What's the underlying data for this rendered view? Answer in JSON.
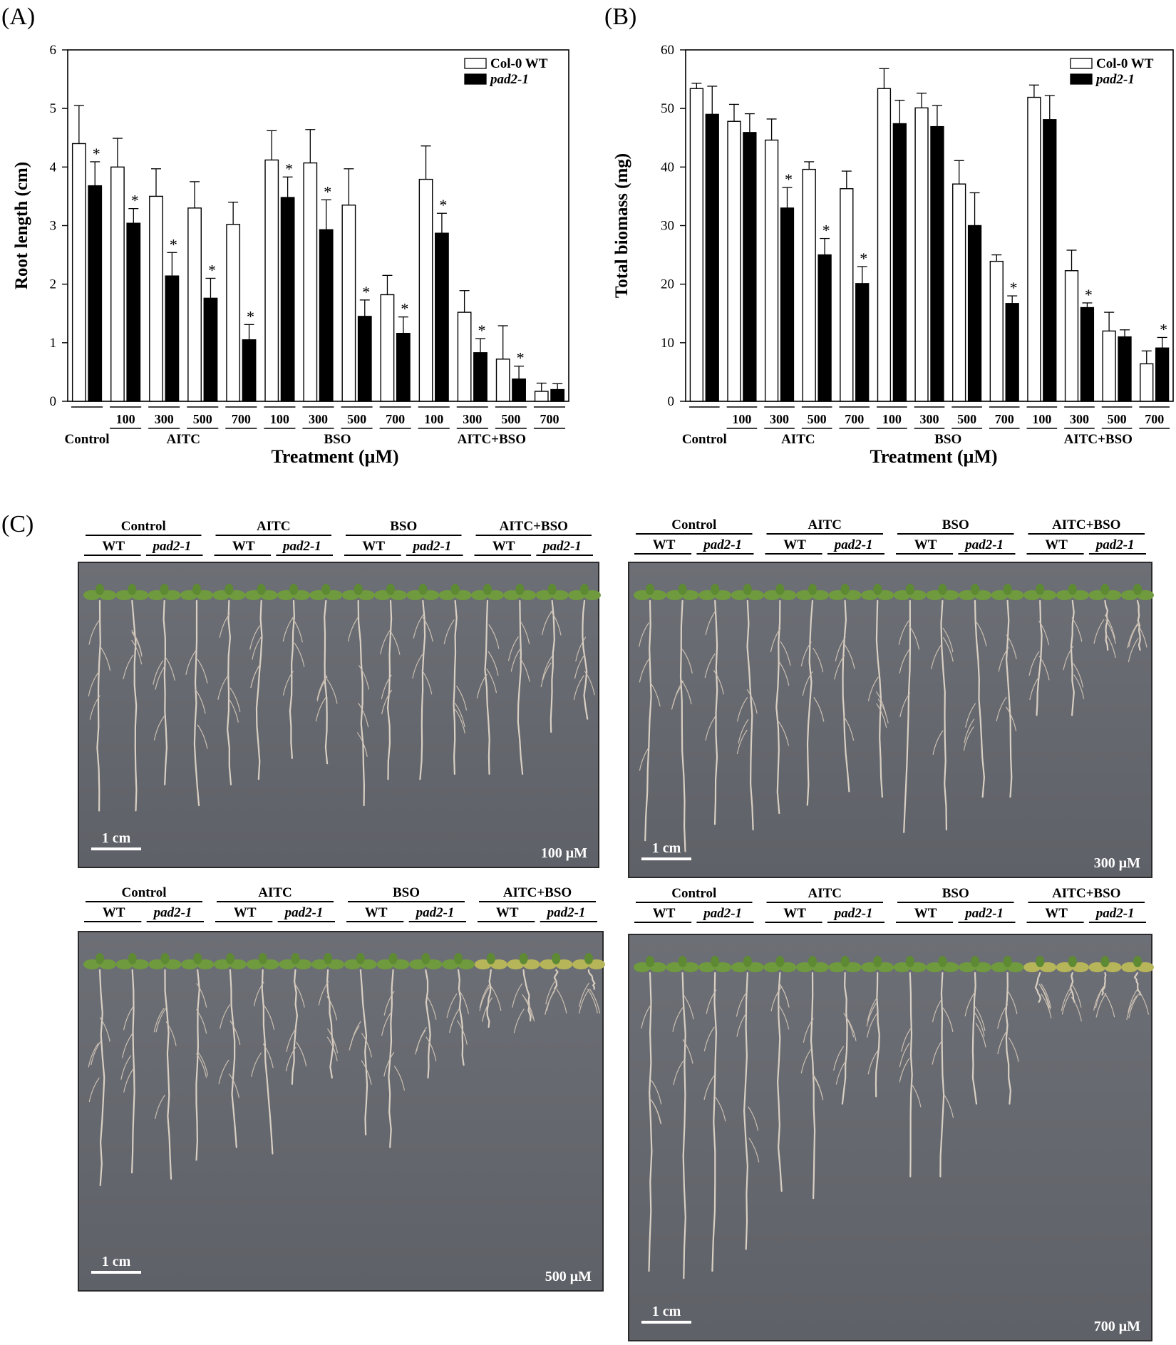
{
  "figure": {
    "panel_a_label": "(A)",
    "panel_b_label": "(B)",
    "panel_c_label": "(C)"
  },
  "chart_data": [
    {
      "type": "bar",
      "panel": "(A)",
      "ylabel": "Root length (cm)",
      "xlabel": "Treatment (μM)",
      "ylim": [
        0,
        6
      ],
      "yticks": [
        "0",
        "1",
        "2",
        "3",
        "4",
        "5",
        "6"
      ],
      "legend": {
        "placement": "top-right",
        "entries": [
          "Col-0 WT",
          "pad2-1"
        ]
      },
      "groups": [
        {
          "label": "Control",
          "span": [
            0,
            0
          ]
        },
        {
          "label": "AITC",
          "span": [
            1,
            4
          ]
        },
        {
          "label": "BSO",
          "span": [
            5,
            8
          ]
        },
        {
          "label": "AITC+BSO",
          "span": [
            9,
            12
          ]
        }
      ],
      "categories": [
        "",
        "100",
        "300",
        "500",
        "700",
        "100",
        "300",
        "500",
        "700",
        "100",
        "300",
        "500",
        "700"
      ],
      "series": [
        {
          "name": "Col-0 WT",
          "fill": "#ffffff",
          "values": [
            4.4,
            4.0,
            3.5,
            3.3,
            3.02,
            4.12,
            4.07,
            3.35,
            1.82,
            3.79,
            1.52,
            0.72,
            0.17
          ],
          "errors": [
            0.65,
            0.49,
            0.47,
            0.45,
            0.38,
            0.5,
            0.57,
            0.62,
            0.33,
            0.57,
            0.37,
            0.57,
            0.14
          ],
          "stars": [
            false,
            false,
            false,
            false,
            false,
            false,
            false,
            false,
            false,
            false,
            false,
            false,
            false
          ]
        },
        {
          "name": "pad2-1",
          "fill": "#000000",
          "values": [
            3.68,
            3.04,
            2.14,
            1.76,
            1.05,
            3.48,
            2.93,
            1.45,
            1.16,
            2.87,
            0.83,
            0.38,
            0.2
          ],
          "errors": [
            0.41,
            0.25,
            0.4,
            0.34,
            0.26,
            0.35,
            0.51,
            0.28,
            0.28,
            0.34,
            0.24,
            0.22,
            0.1
          ],
          "stars": [
            true,
            true,
            true,
            true,
            true,
            true,
            true,
            true,
            true,
            true,
            true,
            true,
            false
          ]
        }
      ]
    },
    {
      "type": "bar",
      "panel": "(B)",
      "ylabel": "Total biomass (mg)",
      "xlabel": "Treatment (μM)",
      "ylim": [
        0,
        60
      ],
      "yticks": [
        "0",
        "10",
        "20",
        "30",
        "40",
        "50",
        "60"
      ],
      "legend": {
        "placement": "top-right",
        "entries": [
          "Col-0 WT",
          "pad2-1"
        ]
      },
      "groups": [
        {
          "label": "Control",
          "span": [
            0,
            0
          ]
        },
        {
          "label": "AITC",
          "span": [
            1,
            4
          ]
        },
        {
          "label": "BSO",
          "span": [
            5,
            8
          ]
        },
        {
          "label": "AITC+BSO",
          "span": [
            9,
            12
          ]
        }
      ],
      "categories": [
        "",
        "100",
        "300",
        "500",
        "700",
        "100",
        "300",
        "500",
        "700",
        "100",
        "300",
        "500",
        "700"
      ],
      "series": [
        {
          "name": "Col-0 WT",
          "fill": "#ffffff",
          "values": [
            53.4,
            47.8,
            44.6,
            39.6,
            36.3,
            53.4,
            50.1,
            37.1,
            23.9,
            51.9,
            22.3,
            12.0,
            6.4
          ],
          "errors": [
            0.9,
            2.9,
            3.6,
            1.3,
            3.0,
            3.4,
            2.5,
            4.0,
            1.1,
            2.1,
            3.5,
            3.2,
            2.2
          ],
          "stars": [
            false,
            false,
            false,
            false,
            false,
            false,
            false,
            false,
            false,
            false,
            false,
            false,
            false
          ]
        },
        {
          "name": "pad2-1",
          "fill": "#000000",
          "values": [
            49.0,
            45.9,
            33.0,
            25.0,
            20.1,
            47.4,
            46.9,
            30.0,
            16.7,
            48.1,
            16.0,
            11.0,
            9.1
          ],
          "errors": [
            4.8,
            3.2,
            3.5,
            2.8,
            2.9,
            4.0,
            3.6,
            5.6,
            1.3,
            4.1,
            0.8,
            1.2,
            1.8
          ],
          "stars": [
            false,
            false,
            true,
            true,
            true,
            false,
            false,
            false,
            true,
            false,
            true,
            false,
            true
          ]
        }
      ]
    }
  ],
  "photos": [
    {
      "panel": "(C)",
      "concentration": "100 μM",
      "scale": "1 cm",
      "groups": [
        {
          "label": "Control",
          "wt": "WT",
          "mut": "pad2-1"
        },
        {
          "label": "AITC",
          "wt": "WT",
          "mut": "pad2-1"
        },
        {
          "label": "BSO",
          "wt": "WT",
          "mut": "pad2-1"
        },
        {
          "label": "AITC+BSO",
          "wt": "WT",
          "mut": "pad2-1"
        }
      ]
    },
    {
      "concentration": "300 μM",
      "scale": "1 cm",
      "groups": [
        {
          "label": "Control",
          "wt": "WT",
          "mut": "pad2-1"
        },
        {
          "label": "AITC",
          "wt": "WT",
          "mut": "pad2-1"
        },
        {
          "label": "BSO",
          "wt": "WT",
          "mut": "pad2-1"
        },
        {
          "label": "AITC+BSO",
          "wt": "WT",
          "mut": "pad2-1"
        }
      ]
    },
    {
      "concentration": "500 μM",
      "scale": "1 cm",
      "groups": [
        {
          "label": "Control",
          "wt": "WT",
          "mut": "pad2-1"
        },
        {
          "label": "AITC",
          "wt": "WT",
          "mut": "pad2-1"
        },
        {
          "label": "BSO",
          "wt": "WT",
          "mut": "pad2-1"
        },
        {
          "label": "AITC+BSO",
          "wt": "WT",
          "mut": "pad2-1"
        }
      ]
    },
    {
      "concentration": "700 μM",
      "scale": "1 cm",
      "groups": [
        {
          "label": "Control",
          "wt": "WT",
          "mut": "pad2-1"
        },
        {
          "label": "AITC",
          "wt": "WT",
          "mut": "pad2-1"
        },
        {
          "label": "BSO",
          "wt": "WT",
          "mut": "pad2-1"
        },
        {
          "label": "AITC+BSO",
          "wt": "WT",
          "mut": "pad2-1"
        }
      ]
    }
  ]
}
